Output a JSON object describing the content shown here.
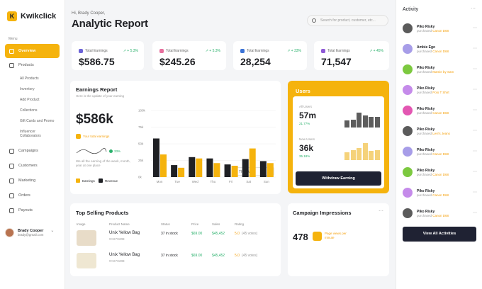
{
  "app": {
    "name": "Kwikclick",
    "logo_letter": "K",
    "accent": "#f5b30d"
  },
  "sidebar": {
    "menu_label": "Menu",
    "items": [
      {
        "label": "Overview",
        "active": true
      },
      {
        "label": "Products"
      },
      {
        "label": "Campaigns"
      },
      {
        "label": "Customers"
      },
      {
        "label": "Marketing"
      },
      {
        "label": "Orders"
      },
      {
        "label": "Payouts"
      }
    ],
    "product_sub": [
      "All Products",
      "Inventory",
      "Add Product",
      "Collections",
      "Gift Cards and Promo",
      "Influencer Collaborators"
    ]
  },
  "user": {
    "name": "Brady Cooper",
    "email": "brady@gmail.com"
  },
  "header": {
    "greeting": "Hi, Brady Cooper,",
    "title": "Analytic Report",
    "search_placeholder": "Search for product, customer, etc..."
  },
  "stats": [
    {
      "label": "Total Earnings",
      "value": "$586.75",
      "change": "+ 5.3%",
      "color": "#6c63d8"
    },
    {
      "label": "Total Earnings",
      "value": "$245.26",
      "change": "+ 5.3%",
      "color": "#e76f9d"
    },
    {
      "label": "Total Earnings",
      "value": "28,254",
      "change": "+ 33%",
      "color": "#3b73d6"
    },
    {
      "label": "Total Earnings",
      "value": "71,547",
      "change": "+ 45%",
      "color": "#8e59d6"
    }
  ],
  "earnings": {
    "title": "Earnings Report",
    "subtitle": "Here is the update of your earning",
    "period": "This Week",
    "total": "$586k",
    "total_label": "Your total earnings",
    "trend_change": "33%",
    "note": "We all the earning of the week, month, year at one place",
    "legend_earnings": "Earnings",
    "legend_revenue": "Revenue"
  },
  "chart_data": {
    "type": "bar",
    "categories": [
      "Mon",
      "Tue",
      "Wed",
      "Thu",
      "Fri",
      "Sat",
      "Sun"
    ],
    "series": [
      {
        "name": "Earnings",
        "values": [
          58,
          18,
          30,
          28,
          19,
          27,
          24
        ],
        "color": "#1f2024"
      },
      {
        "name": "Revenue",
        "values": [
          34,
          14,
          28,
          21,
          17,
          43,
          21
        ],
        "color": "#f5b30d"
      }
    ],
    "y_ticks": [
      "0k",
      "25k",
      "50k",
      "75k",
      "100k"
    ],
    "ylim": [
      0,
      100
    ]
  },
  "users": {
    "title": "Users",
    "all_label": "All Users",
    "all_value": "57m",
    "all_change": "21.77%",
    "new_label": "New Users",
    "new_value": "36k",
    "new_change": "35.18%",
    "bars_dark": [
      0.35,
      0.4,
      0.75,
      0.6,
      0.55,
      0.55
    ],
    "bars_light": [
      0.4,
      0.5,
      0.6,
      0.85,
      0.45,
      0.5
    ],
    "button": "Withdraw Earning"
  },
  "products": {
    "title": "Top Selling Products",
    "headers": [
      "Image",
      "Product Name",
      "Status",
      "Price",
      "Sales",
      "Rating"
    ],
    "rows": [
      {
        "name": "Unix Yellow Bag",
        "id": "#AX7X208",
        "status": "37 in stock",
        "price": "$69.00",
        "sales": "$45,452",
        "rating": "5.0",
        "votes": "(45 votes)"
      },
      {
        "name": "Unix Yellow Bag",
        "id": "#AX7X208",
        "status": "37 in stock",
        "price": "$69.00",
        "sales": "$45,452",
        "rating": "5.0",
        "votes": "(45 votes)"
      }
    ]
  },
  "campaign": {
    "title": "Campaign Impressions",
    "value": "478",
    "note": "Page views per minute"
  },
  "activity": {
    "title": "Activity",
    "button": "View All Activities",
    "items": [
      {
        "name": "Piko Risky",
        "action": "purchased",
        "product": "Canon D68",
        "avatar": "#5b5b5b"
      },
      {
        "name": "Ambie Ego",
        "action": "purchased",
        "product": "Canon D68",
        "avatar": "#a79de8"
      },
      {
        "name": "Piko Risky",
        "action": "purchased",
        "product": "Mamie by Sam",
        "avatar": "#7cc93f"
      },
      {
        "name": "Piko Risky",
        "action": "purchased",
        "product": "Polo T Shirt",
        "avatar": "#c58bea"
      },
      {
        "name": "Piko Risky",
        "action": "purchased",
        "product": "Canon D68",
        "avatar": "#e357b2"
      },
      {
        "name": "Piko Risky",
        "action": "purchased",
        "product": "Levi's Jeans",
        "avatar": "#5b5b5b"
      },
      {
        "name": "Piko Risky",
        "action": "purchased",
        "product": "Canon D68",
        "avatar": "#a79de8"
      },
      {
        "name": "Piko Risky",
        "action": "purchased",
        "product": "Canon D68",
        "avatar": "#7cc93f"
      },
      {
        "name": "Piko Risky",
        "action": "purchased",
        "product": "Canon D68",
        "avatar": "#c58bea"
      },
      {
        "name": "Piko Risky",
        "action": "purchased",
        "product": "Canon D68",
        "avatar": "#5b5b5b"
      }
    ]
  }
}
